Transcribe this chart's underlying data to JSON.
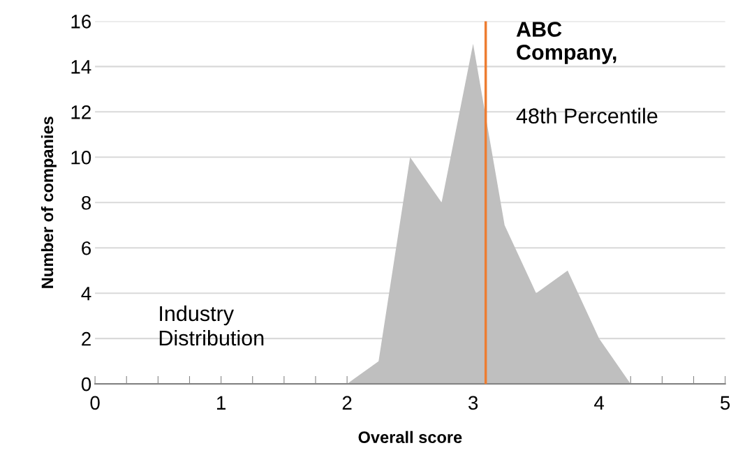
{
  "chart_data": {
    "type": "area",
    "xlabel": "Overall score",
    "ylabel": "Number of companies",
    "x": [
      2.0,
      2.25,
      2.5,
      2.75,
      3.0,
      3.25,
      3.5,
      3.75,
      4.0,
      4.25
    ],
    "series": [
      {
        "color": "#bfbfbf",
        "values": [
          0,
          1,
          10,
          8,
          15,
          7,
          4,
          5,
          2,
          0
        ]
      }
    ],
    "xlim": [
      0,
      5
    ],
    "xticks": [
      0,
      {
        "value": 0.25,
        "label": null
      },
      {
        "value": 0.5,
        "label": null
      },
      {
        "value": 0.75,
        "label": null
      },
      1,
      {
        "value": 1.25,
        "label": null
      },
      {
        "value": 1.5,
        "label": null
      },
      {
        "value": 1.75,
        "label": null
      },
      2,
      {
        "value": 2.25,
        "label": null
      },
      {
        "value": 2.5,
        "label": null
      },
      {
        "value": 2.75,
        "label": null
      },
      3,
      {
        "value": 3.25,
        "label": null
      },
      {
        "value": 3.5,
        "label": null
      },
      {
        "value": 3.75,
        "label": null
      },
      4,
      {
        "value": 4.25,
        "label": null
      },
      {
        "value": 4.5,
        "label": null
      },
      {
        "value": 4.75,
        "label": null
      },
      5
    ],
    "ylim": [
      0,
      16
    ],
    "yticks": [
      0,
      2,
      4,
      6,
      8,
      10,
      12,
      14,
      16
    ],
    "grid": "y",
    "ref_lines": [
      {
        "axis": "x",
        "value": 3.1,
        "label": "ABC\nCompany,",
        "color": "#ed7d31"
      }
    ],
    "annotations": [
      {
        "text": "48th Percentile"
      },
      {
        "text": "Industry\nDistribution"
      }
    ]
  }
}
